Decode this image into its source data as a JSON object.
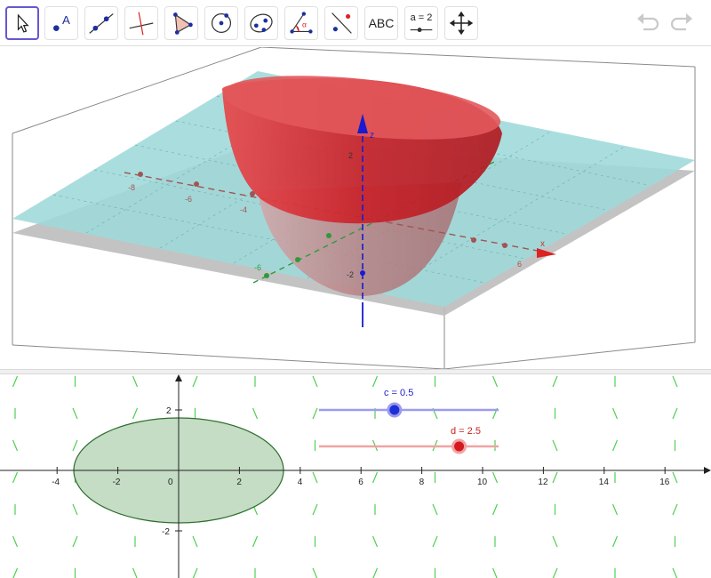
{
  "toolbar": {
    "tools": [
      {
        "name": "move-tool",
        "active": true
      },
      {
        "name": "point-tool",
        "label": "A"
      },
      {
        "name": "line-tool"
      },
      {
        "name": "perpendicular-line-tool"
      },
      {
        "name": "polygon-tool"
      },
      {
        "name": "circle-tool"
      },
      {
        "name": "ellipse-tool"
      },
      {
        "name": "angle-tool",
        "label": "α"
      },
      {
        "name": "reflect-tool"
      },
      {
        "name": "text-tool",
        "label": "ABC"
      },
      {
        "name": "slider-tool",
        "label": "a = 2"
      },
      {
        "name": "move-graphics-view-tool"
      }
    ],
    "undo_icon": "undo-icon",
    "redo_icon": "redo-icon"
  },
  "view3d": {
    "z_label": "z",
    "x_label": "x",
    "x_ticks": [
      "-8",
      "-6",
      "-4",
      "6"
    ],
    "y_ticks": [
      "-6"
    ],
    "z_ticks": [
      "2",
      "-2"
    ],
    "colors": {
      "plane": "#9ed9da",
      "surface": "#d62f35",
      "xy_plane": "#bdbdbd",
      "z_axis": "#1a1acf",
      "x_axis": "#a05555",
      "y_axis": "#2e9a3e"
    }
  },
  "view2d": {
    "x_ticks": [
      "-4",
      "-2",
      "0",
      "2",
      "4",
      "6",
      "8",
      "10",
      "12",
      "14",
      "16"
    ],
    "y_ticks": [
      "2",
      "-2"
    ],
    "sliders": [
      {
        "name": "c",
        "label": "c = 0.5",
        "value": 0.5,
        "fraction": 0.42,
        "color": "#2222cc"
      },
      {
        "name": "d",
        "label": "d = 2.5",
        "value": 2.5,
        "fraction": 0.78,
        "color": "#cc1f1f"
      }
    ],
    "ellipse_color": "#7fb27f"
  }
}
